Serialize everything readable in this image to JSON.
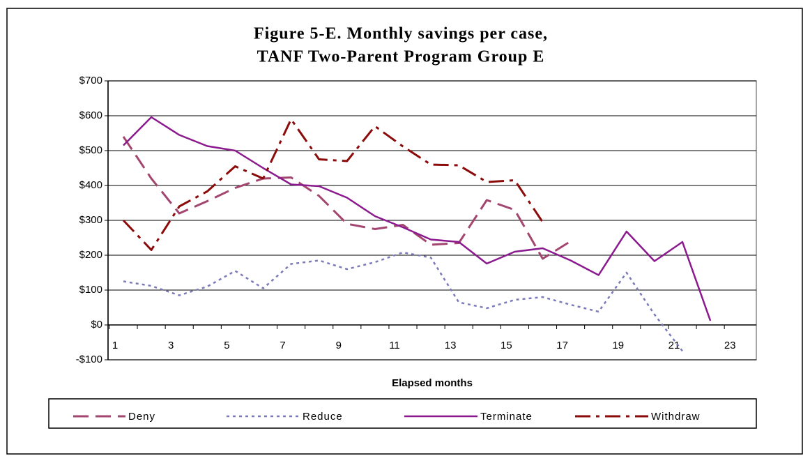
{
  "chart_data": {
    "type": "line",
    "title": [
      "Figure 5-E.  Monthly savings per case,",
      "TANF Two-Parent Program Group E"
    ],
    "x_label": "Elapsed months",
    "categories": [
      "1",
      null,
      "3",
      null,
      "5",
      null,
      "7",
      null,
      "9",
      null,
      "11",
      null,
      "13",
      null,
      "15",
      null,
      "17",
      null,
      "19",
      null,
      "21",
      null,
      "23"
    ],
    "series": [
      {
        "name": "Deny",
        "color": "#a3466f",
        "style": "dashed",
        "values": [
          540,
          420,
          320,
          355,
          393,
          420,
          423,
          370,
          290,
          275,
          287,
          230,
          235,
          358,
          330,
          190,
          240,
          null,
          null,
          null,
          null,
          null,
          null
        ]
      },
      {
        "name": "Reduce",
        "color": "#7a7ab8",
        "style": "dotted",
        "values": [
          125,
          112,
          85,
          110,
          155,
          105,
          175,
          185,
          160,
          180,
          208,
          193,
          65,
          48,
          72,
          80,
          58,
          38,
          150,
          30,
          -75,
          null,
          null
        ]
      },
      {
        "name": "Terminate",
        "color": "#8a1a8e",
        "style": "solid",
        "values": [
          515,
          596,
          545,
          513,
          500,
          450,
          403,
          398,
          365,
          312,
          280,
          245,
          238,
          176,
          210,
          220,
          185,
          143,
          268,
          183,
          238,
          12,
          null
        ]
      },
      {
        "name": "Withdraw",
        "color": "#8b0a0a",
        "style": "dashdot",
        "values": [
          300,
          215,
          340,
          383,
          455,
          420,
          590,
          475,
          470,
          570,
          512,
          460,
          458,
          410,
          415,
          295,
          null,
          null,
          null,
          null,
          null,
          null,
          null
        ]
      }
    ],
    "ylim": [
      -100,
      700
    ],
    "yticks": [
      {
        "value": -100,
        "label": "-$100"
      },
      {
        "value": 0,
        "label": "$0"
      },
      {
        "value": 100,
        "label": "$100"
      },
      {
        "value": 200,
        "label": "$200"
      },
      {
        "value": 300,
        "label": "$300"
      },
      {
        "value": 400,
        "label": "$400"
      },
      {
        "value": 500,
        "label": "$500"
      },
      {
        "value": 600,
        "label": "$600"
      },
      {
        "value": 700,
        "label": "$700"
      }
    ],
    "grid": true,
    "legend": "bottom"
  }
}
